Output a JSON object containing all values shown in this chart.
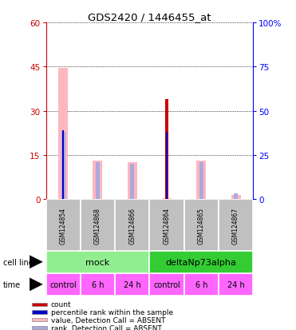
{
  "title": "GDS2420 / 1446455_at",
  "samples": [
    "GSM124854",
    "GSM124868",
    "GSM124866",
    "GSM124864",
    "GSM124865",
    "GSM124867"
  ],
  "value_absent": [
    44.5,
    13.0,
    12.5,
    0.5,
    13.0,
    1.5
  ],
  "rank_absent": [
    23.0,
    12.5,
    12.0,
    0.0,
    12.5,
    2.0
  ],
  "count_val": [
    0,
    0,
    0,
    34,
    0,
    0
  ],
  "percentile_val": [
    23.5,
    0,
    0,
    23.0,
    0,
    0
  ],
  "left_ylim": [
    0,
    60
  ],
  "right_ylim": [
    0,
    100
  ],
  "left_yticks": [
    0,
    15,
    30,
    45,
    60
  ],
  "right_yticks": [
    0,
    25,
    50,
    75,
    100
  ],
  "right_yticklabels": [
    "0",
    "25",
    "50",
    "75",
    "100%"
  ],
  "cell_line_mock": "mock",
  "cell_line_delta": "deltaNp73alpha",
  "time_labels": [
    "control",
    "6 h",
    "24 h",
    "control",
    "6 h",
    "24 h"
  ],
  "mock_color": "#90EE90",
  "delta_color": "#33CC33",
  "time_color": "#FF66FF",
  "sample_bg_color": "#C0C0C0",
  "color_count": "#CC0000",
  "color_percentile": "#0000CC",
  "color_value_absent": "#FFB6C1",
  "color_rank_absent": "#AAAADD",
  "legend_labels": [
    "count",
    "percentile rank within the sample",
    "value, Detection Call = ABSENT",
    "rank, Detection Call = ABSENT"
  ],
  "legend_colors": [
    "#CC0000",
    "#0000CC",
    "#FFB6C1",
    "#AAAADD"
  ]
}
